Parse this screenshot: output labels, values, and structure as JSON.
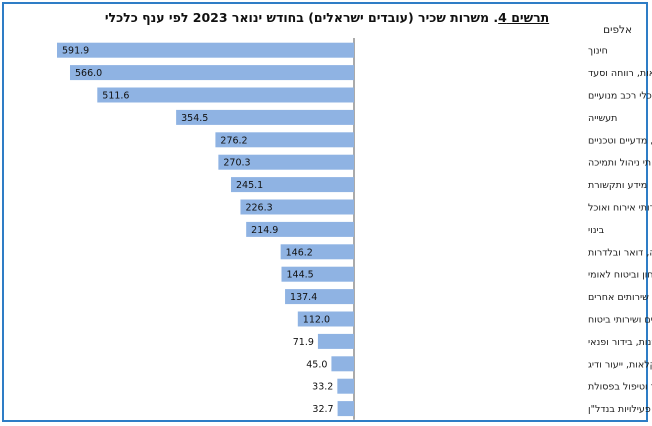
{
  "title": {
    "figure_label": "תרשים 4",
    "text": "משרות שכיר (עובדים ישראלים) בחודש ינואר 2023 לפי ענף כלכלי"
  },
  "unit_label": "אלפים",
  "colors": {
    "bar": "#8fb3e3",
    "frame": "#2e7dc6"
  },
  "chart_data": {
    "type": "bar",
    "orientation": "horizontal",
    "title": "משרות שכיר (עובדים ישראלים) בחודש ינואר 2023 לפי ענף כלכלי",
    "unit": "אלפים",
    "categories": [
      "חינוך",
      "שירותי בריאות, רווחה וסעד",
      "מסחר סיטוני וקמעוני ותיקון כלי רכב מנועיים",
      "תעשייה",
      "שירותים מקצועיים, מדעיים וטכניים",
      "שירותי ניהול ותמיכה",
      "מידע ותקשורת",
      "שירותי אירוח ואוכל",
      "בינוי",
      "שירותי תחבורה, אחסנה, דואר ובלדרות",
      "מינהל מקומי, ציבורי וביטחון וביטוח לאומי",
      "שירותים אחרים",
      "שירותים פיננסיים ושירותי ביטוח",
      "אמנות, בידור ופנאי",
      "חקלאות, ייעור ודיג",
      "אספקת חשמל ומים, שירותי ביוב וטיהור וטיפול בפסולת",
      "פעילויות בנדל\"ן"
    ],
    "values": [
      591.9,
      566.0,
      511.6,
      354.5,
      276.2,
      270.3,
      245.1,
      226.3,
      214.9,
      146.2,
      144.5,
      137.4,
      112.0,
      71.9,
      45.0,
      33.2,
      32.7
    ],
    "value_labels": [
      "591.9",
      "566.0",
      "511.6",
      "354.5",
      "276.2",
      "270.3",
      "245.1",
      "226.3",
      "214.9",
      "146.2",
      "144.5",
      "137.4",
      "112.0",
      "71.9",
      "45.0",
      "33.2",
      "32.7"
    ],
    "xlim": [
      0,
      591.9
    ],
    "grid": false,
    "legend": "none"
  }
}
